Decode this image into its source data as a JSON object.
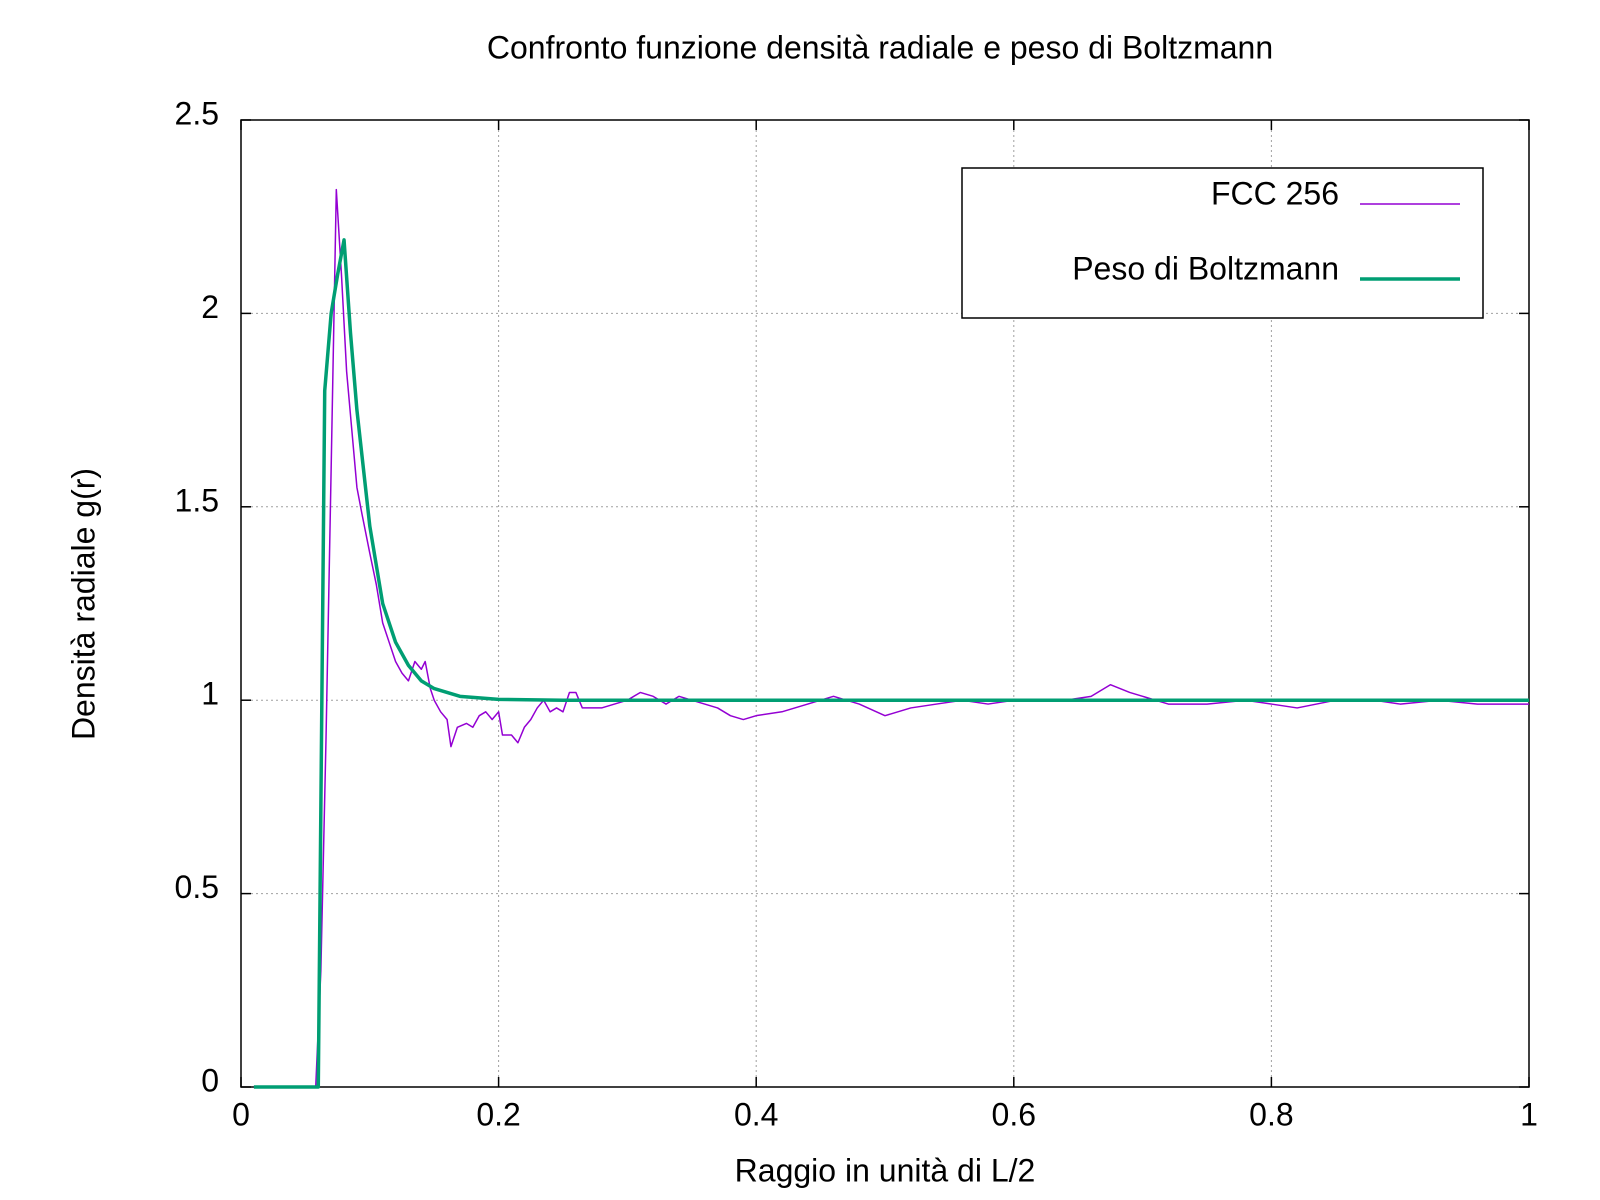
{
  "chart_data": {
    "type": "line",
    "title": "Confronto funzione densità radiale e peso di Boltzmann",
    "xlabel": "Raggio in unità di L/2",
    "ylabel": "Densità radiale g(r)",
    "xlim": [
      0,
      1
    ],
    "ylim": [
      0,
      2.5
    ],
    "xticks": [
      0,
      0.2,
      0.4,
      0.6,
      0.8,
      1
    ],
    "yticks": [
      0,
      0.5,
      1,
      1.5,
      2,
      2.5
    ],
    "grid": true,
    "legend": "top-right",
    "series": [
      {
        "name": "FCC 256",
        "color": "#9400d3",
        "x": [
          0.01,
          0.058,
          0.062,
          0.066,
          0.07,
          0.074,
          0.078,
          0.082,
          0.086,
          0.09,
          0.094,
          0.1,
          0.105,
          0.11,
          0.115,
          0.12,
          0.125,
          0.13,
          0.135,
          0.14,
          0.143,
          0.147,
          0.15,
          0.155,
          0.16,
          0.163,
          0.168,
          0.175,
          0.18,
          0.185,
          0.19,
          0.195,
          0.2,
          0.203,
          0.21,
          0.215,
          0.22,
          0.225,
          0.23,
          0.235,
          0.24,
          0.245,
          0.25,
          0.255,
          0.26,
          0.265,
          0.27,
          0.28,
          0.29,
          0.3,
          0.31,
          0.32,
          0.33,
          0.34,
          0.35,
          0.36,
          0.37,
          0.38,
          0.39,
          0.4,
          0.42,
          0.44,
          0.46,
          0.48,
          0.5,
          0.52,
          0.54,
          0.56,
          0.58,
          0.6,
          0.62,
          0.64,
          0.66,
          0.675,
          0.69,
          0.7,
          0.72,
          0.75,
          0.78,
          0.8,
          0.82,
          0.85,
          0.88,
          0.9,
          0.93,
          0.96,
          1.0
        ],
        "values": [
          0,
          0,
          0.3,
          0.9,
          1.6,
          2.32,
          2.1,
          1.85,
          1.7,
          1.55,
          1.48,
          1.38,
          1.3,
          1.2,
          1.15,
          1.1,
          1.07,
          1.05,
          1.1,
          1.08,
          1.1,
          1.03,
          1.0,
          0.97,
          0.95,
          0.88,
          0.93,
          0.94,
          0.93,
          0.96,
          0.97,
          0.95,
          0.97,
          0.91,
          0.91,
          0.89,
          0.93,
          0.95,
          0.98,
          1.0,
          0.97,
          0.98,
          0.97,
          1.02,
          1.02,
          0.98,
          0.98,
          0.98,
          0.99,
          1.0,
          1.02,
          1.01,
          0.99,
          1.01,
          1.0,
          0.99,
          0.98,
          0.96,
          0.95,
          0.96,
          0.97,
          0.99,
          1.01,
          0.99,
          0.96,
          0.98,
          0.99,
          1.0,
          0.99,
          1.0,
          1.0,
          1.0,
          1.01,
          1.04,
          1.02,
          1.01,
          0.99,
          0.99,
          1.0,
          0.99,
          0.98,
          1.0,
          1.0,
          0.99,
          1.0,
          0.99,
          0.99
        ]
      },
      {
        "name": "Peso di Boltzmann",
        "color": "#009e73",
        "x": [
          0.01,
          0.058,
          0.06,
          0.065,
          0.07,
          0.075,
          0.08,
          0.085,
          0.09,
          0.1,
          0.11,
          0.12,
          0.13,
          0.14,
          0.15,
          0.17,
          0.2,
          0.25,
          1.0
        ],
        "values": [
          0,
          0,
          0.0,
          1.8,
          2.0,
          2.1,
          2.19,
          1.95,
          1.75,
          1.45,
          1.25,
          1.15,
          1.09,
          1.05,
          1.03,
          1.01,
          1.002,
          1.0,
          1.0
        ]
      }
    ]
  }
}
